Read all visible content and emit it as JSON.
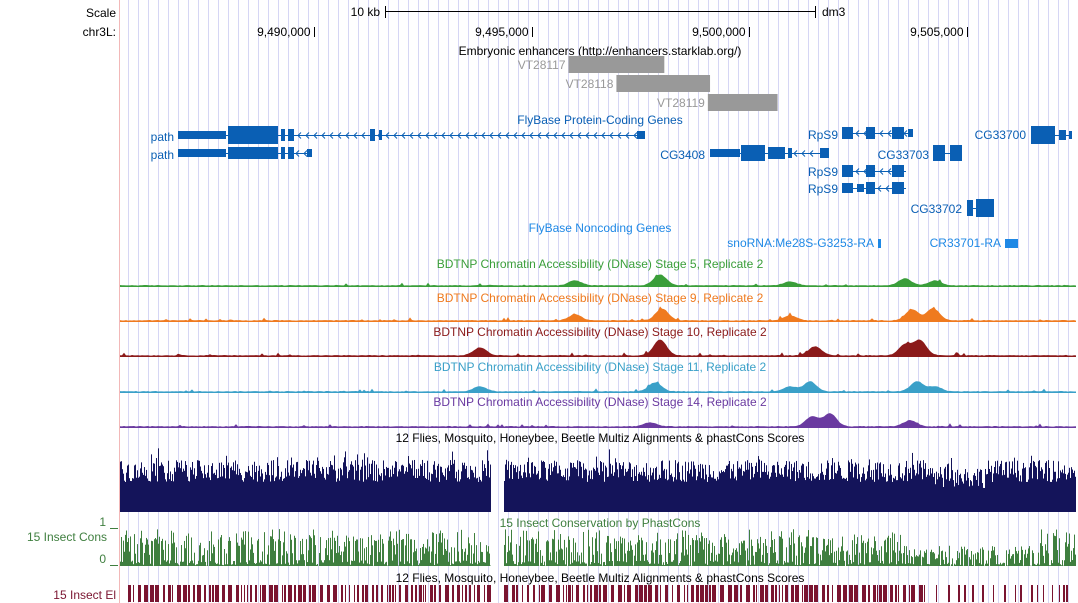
{
  "scale": {
    "label": "Scale",
    "chrom_label": "chr3L:",
    "bar_label": "10 kb",
    "assembly": "dm3",
    "ticks": [
      {
        "label": "9,490,000",
        "pos": 9490000
      },
      {
        "label": "9,495,000",
        "pos": 9495000
      },
      {
        "label": "9,500,000",
        "pos": 9500000
      },
      {
        "label": "9,505,000",
        "pos": 9505000
      }
    ]
  },
  "colors": {
    "genes": "#0a5fb4",
    "noncoding": "#1e88e5",
    "enhancer": "#999999",
    "dnase_stage5": "#3a9e3a",
    "dnase_stage9": "#ef7a1f",
    "dnase_stage10": "#8b1a1a",
    "dnase_stage11": "#3aa0c8",
    "dnase_stage14": "#6a3aa0",
    "multiz": "#14145a",
    "phastcons": "#3f7f3f",
    "elements": "#7a1430",
    "grid": "#d6d6f5"
  },
  "tracks": {
    "enhancers": {
      "title": "Embryonic enhancers (http://enhancers.starklab.org/)",
      "items": [
        {
          "name": "VT28117",
          "start": 9495850,
          "end": 9498050
        },
        {
          "name": "VT28118",
          "start": 9496950,
          "end": 9499100
        },
        {
          "name": "VT28119",
          "start": 9499050,
          "end": 9500650
        }
      ]
    },
    "protein_coding": {
      "title": "FlyBase Protein-Coding Genes",
      "labels": {
        "path1": "path",
        "path2": "path",
        "cg3408": "CG3408",
        "rps9_1": "RpS9",
        "rps9_2": "RpS9",
        "rps9_3": "RpS9",
        "cg33703": "CG33703",
        "cg33700": "CG33700",
        "cg33702": "CG33702"
      }
    },
    "noncoding": {
      "title": "FlyBase Noncoding Genes",
      "labels": {
        "snorna": "snoRNA:Me28S-G3253-RA",
        "cr33701": "CR33701-RA"
      }
    },
    "dnase": [
      {
        "key": "dnase_stage5",
        "title": "BDTNP Chromatin Accessibility (DNase) Stage 5, Replicate 2"
      },
      {
        "key": "dnase_stage9",
        "title": "BDTNP Chromatin Accessibility (DNase) Stage 9, Replicate 2"
      },
      {
        "key": "dnase_stage10",
        "title": "BDTNP Chromatin Accessibility (DNase) Stage 10, Replicate 2"
      },
      {
        "key": "dnase_stage11",
        "title": "BDTNP Chromatin Accessibility (DNase) Stage 11, Replicate 2"
      },
      {
        "key": "dnase_stage14",
        "title": "BDTNP Chromatin Accessibility (DNase) Stage 14, Replicate 2"
      }
    ],
    "multiz": {
      "title": "12 Flies, Mosquito, Honeybee, Beetle Multiz Alignments & phastCons Scores"
    },
    "phastcons": {
      "title": "15 Insect Conservation by PhastCons",
      "side_label": "15 Insect Cons",
      "axis_max": "1",
      "axis_min": "0"
    },
    "elements": {
      "title": "12 Flies, Mosquito, Honeybee, Beetle Multiz Alignments & phastCons Scores",
      "side_label": "15 Insect El"
    }
  }
}
